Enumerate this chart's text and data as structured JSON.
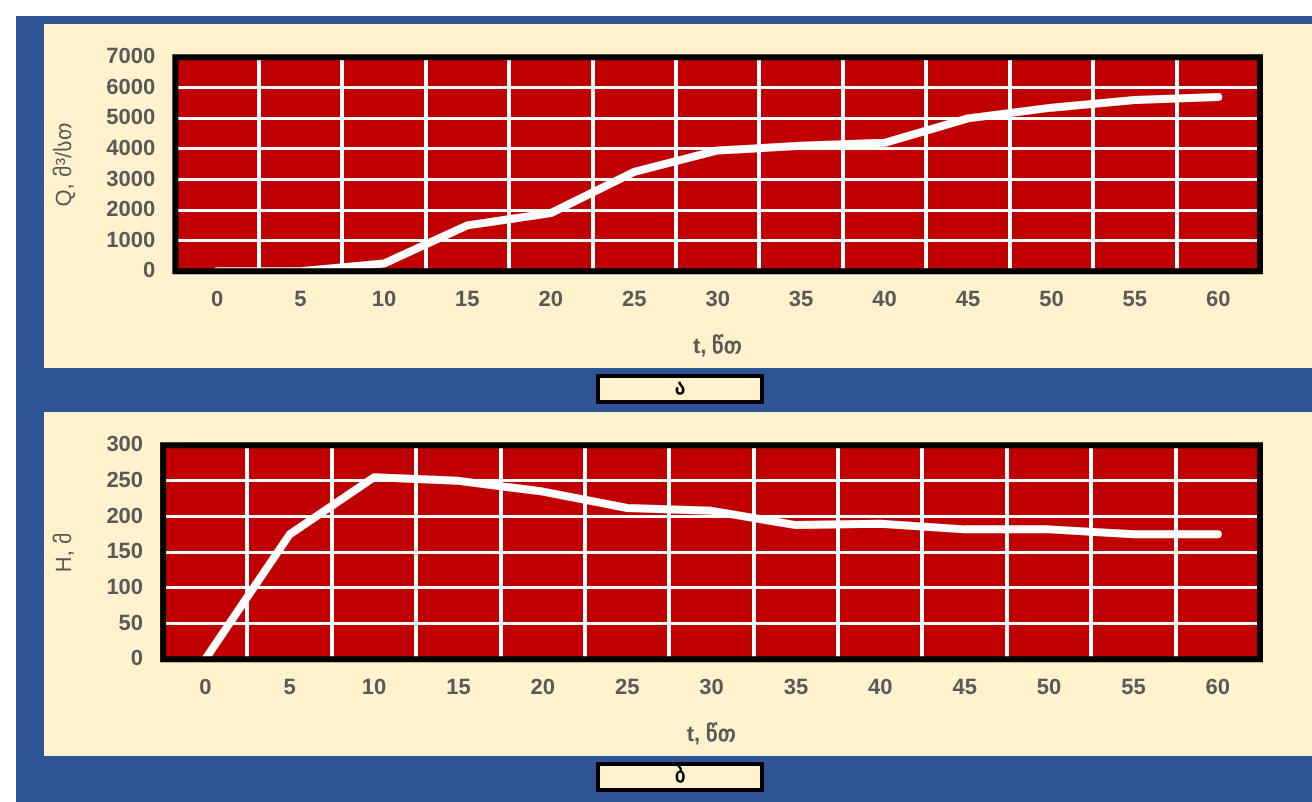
{
  "chart_data": [
    {
      "type": "line",
      "xlabel": "t, წთ",
      "ylabel": "Q, მ³/სთ",
      "categories": [
        "0",
        "5",
        "10",
        "15",
        "20",
        "25",
        "30",
        "35",
        "40",
        "45",
        "50",
        "55",
        "60"
      ],
      "series": [
        {
          "color": "#ffffff",
          "values": [
            0,
            0,
            250,
            1500,
            1900,
            3250,
            3950,
            4100,
            4200,
            5000,
            5350,
            5600,
            5700
          ]
        }
      ],
      "ylim": [
        0,
        7000
      ],
      "yticks": [
        0,
        1000,
        2000,
        3000,
        4000,
        5000,
        6000,
        7000
      ],
      "grid": true,
      "legend": false,
      "marker": "none",
      "line_style": "solid",
      "annotations": [
        "ა"
      ]
    },
    {
      "type": "line",
      "xlabel": "t, წთ",
      "ylabel": "H, მ",
      "categories": [
        "0",
        "5",
        "10",
        "15",
        "20",
        "25",
        "30",
        "35",
        "40",
        "45",
        "50",
        "55",
        "60"
      ],
      "series": [
        {
          "color": "#ffffff",
          "values": [
            0,
            175,
            255,
            250,
            235,
            212,
            208,
            188,
            190,
            182,
            182,
            175,
            175
          ]
        }
      ],
      "ylim": [
        0,
        300
      ],
      "yticks": [
        0,
        50,
        100,
        150,
        200,
        250,
        300
      ],
      "grid": true,
      "legend": false,
      "marker": "none",
      "line_style": "solid",
      "annotations": [
        "ბ"
      ]
    }
  ]
}
